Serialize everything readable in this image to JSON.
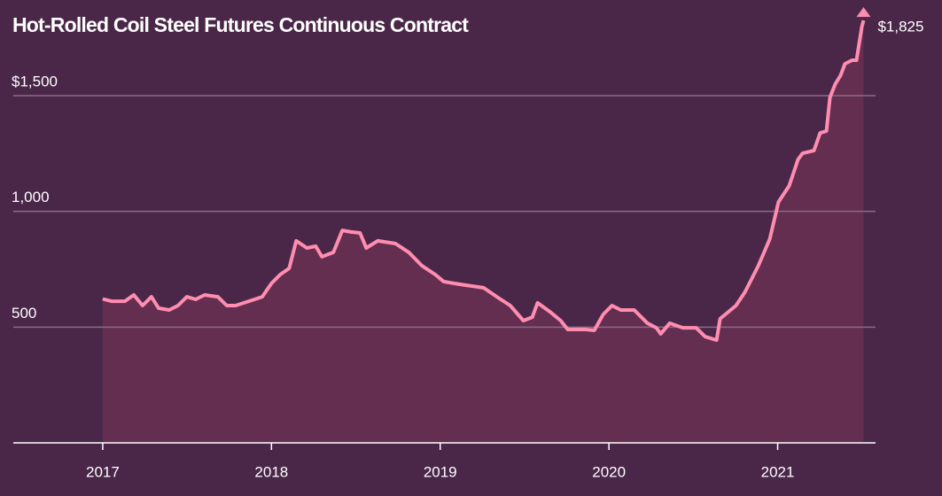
{
  "chart_data": {
    "type": "line",
    "title": "Hot-Rolled Coil Steel Futures Continuous Contract",
    "annotation": "$1,825",
    "color": "#ff8db0",
    "area_color": "#632e50",
    "x": [
      2017.0,
      2017.052,
      2017.131,
      2017.184,
      2017.236,
      2017.289,
      2017.331,
      2017.394,
      2017.446,
      2017.499,
      2017.551,
      2017.604,
      2017.682,
      2017.735,
      2017.787,
      2017.866,
      2017.945,
      2018.0,
      2018.052,
      2018.105,
      2018.147,
      2018.21,
      2018.262,
      2018.299,
      2018.367,
      2018.42,
      2018.472,
      2018.525,
      2018.562,
      2018.63,
      2018.735,
      2018.814,
      2018.892,
      2018.971,
      2019.021,
      2019.084,
      2019.152,
      2019.257,
      2019.336,
      2019.415,
      2019.493,
      2019.546,
      2019.577,
      2019.651,
      2019.714,
      2019.756,
      2019.861,
      2019.913,
      2019.966,
      2020.018,
      2020.07,
      2020.15,
      2020.228,
      2020.281,
      2020.307,
      2020.36,
      2020.438,
      2020.517,
      2020.57,
      2020.638,
      2020.659,
      2020.753,
      2020.806,
      2020.885,
      2020.953,
      2021.005,
      2021.068,
      2021.121,
      2021.147,
      2021.215,
      2021.252,
      2021.289,
      2021.31,
      2021.341,
      2021.373,
      2021.399,
      2021.441,
      2021.467,
      2021.499,
      2021.509
    ],
    "values": [
      622,
      612,
      612,
      639,
      593,
      631,
      582,
      574,
      593,
      631,
      620,
      639,
      631,
      593,
      593,
      612,
      631,
      689,
      727,
      754,
      873,
      842,
      850,
      804,
      823,
      918,
      911,
      907,
      842,
      873,
      861,
      823,
      765,
      727,
      697,
      689,
      681,
      670,
      631,
      593,
      528,
      543,
      605,
      566,
      528,
      490,
      490,
      486,
      555,
      593,
      574,
      574,
      517,
      497,
      471,
      517,
      497,
      497,
      459,
      444,
      536,
      593,
      651,
      765,
      880,
      1041,
      1110,
      1225,
      1251,
      1263,
      1339,
      1347,
      1493,
      1550,
      1588,
      1638,
      1653,
      1653,
      1799,
      1825
    ],
    "xlim": [
      2016.47,
      2021.58
    ],
    "xticks": [
      2017,
      2018,
      2019,
      2020,
      2021
    ],
    "ylim": [
      0,
      1900
    ],
    "yticks": [
      {
        "value": 500,
        "label": "500"
      },
      {
        "value": 1000,
        "label": "1,000"
      },
      {
        "value": 1500,
        "label": "$1,500"
      }
    ],
    "grid": true
  }
}
